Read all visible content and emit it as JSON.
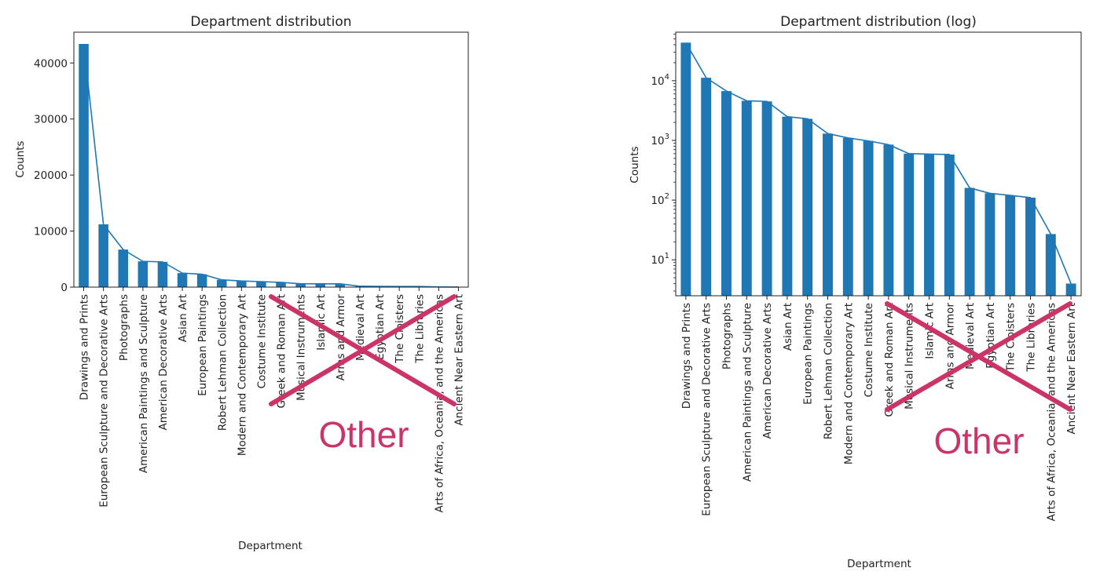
{
  "annotation": {
    "cross_color": "#cc3366",
    "label": "Other"
  },
  "chart_data": [
    {
      "type": "bar",
      "title": "Department distribution",
      "xlabel": "Department",
      "ylabel": "Counts",
      "yscale": "linear",
      "ylim": [
        0,
        45500
      ],
      "yticks": [
        0,
        10000,
        20000,
        30000,
        40000
      ],
      "ytick_labels": [
        "0",
        "10000",
        "20000",
        "30000",
        "40000"
      ],
      "overlay_line": true,
      "bar_color": "#1f77b4",
      "categories": [
        "Drawings and Prints",
        "European Sculpture and Decorative Arts",
        "Photographs",
        "American Paintings and Sculpture",
        "American Decorative Arts",
        "Asian Art",
        "European Paintings",
        "Robert Lehman Collection",
        "Modern and Contemporary Art",
        "Costume Institute",
        "Greek and Roman Art",
        "Musical Instruments",
        "Islamic Art",
        "Arms and Armor",
        "Medieval Art",
        "Egyptian Art",
        "The Cloisters",
        "The Libraries",
        "Arts of Africa, Oceania, and the Americas",
        "Ancient Near Eastern Art"
      ],
      "values": [
        43400,
        11200,
        6700,
        4600,
        4500,
        2500,
        2300,
        1300,
        1100,
        980,
        850,
        600,
        590,
        580,
        160,
        130,
        120,
        110,
        27,
        4
      ]
    },
    {
      "type": "bar",
      "title": "Department distribution (log)",
      "xlabel": "Department",
      "ylabel": "Counts",
      "yscale": "log",
      "ylim": [
        2.5,
        65000
      ],
      "yticks": [
        10,
        100,
        1000,
        10000
      ],
      "ytick_labels": [
        [
          "10",
          "1"
        ],
        [
          "10",
          "2"
        ],
        [
          "10",
          "3"
        ],
        [
          "10",
          "4"
        ]
      ],
      "overlay_line": true,
      "bar_color": "#1f77b4",
      "categories": [
        "Drawings and Prints",
        "European Sculpture and Decorative Arts",
        "Photographs",
        "American Paintings and Sculpture",
        "American Decorative Arts",
        "Asian Art",
        "European Paintings",
        "Robert Lehman Collection",
        "Modern and Contemporary Art",
        "Costume Institute",
        "Greek and Roman Art",
        "Musical Instruments",
        "Islamic Art",
        "Arms and Armor",
        "Medieval Art",
        "Egyptian Art",
        "The Cloisters",
        "The Libraries",
        "Arts of Africa, Oceania, and the Americas",
        "Ancient Near Eastern Art"
      ],
      "values": [
        43400,
        11200,
        6700,
        4600,
        4500,
        2500,
        2300,
        1300,
        1100,
        980,
        850,
        600,
        590,
        580,
        160,
        130,
        120,
        110,
        27,
        4
      ]
    }
  ]
}
